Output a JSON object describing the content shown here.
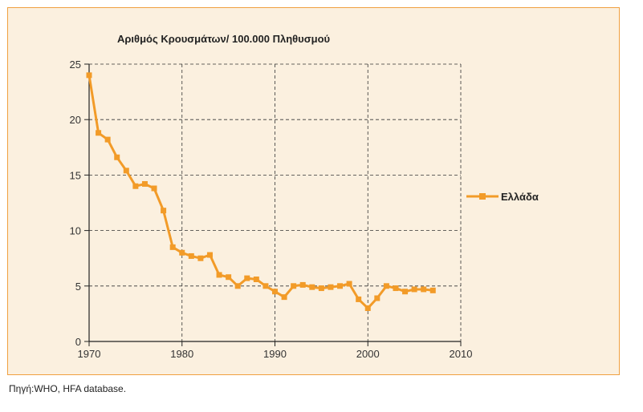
{
  "chart_data": {
    "type": "line",
    "title": "Αριθμός Κρουσμάτων/ 100.000 Πληθυσμού",
    "xlabel": "",
    "ylabel": "",
    "xlim": [
      1970,
      2010
    ],
    "ylim": [
      0,
      25
    ],
    "x_ticks": [
      "1970",
      "1980",
      "1990",
      "2000",
      "2010"
    ],
    "y_ticks": [
      "0",
      "5",
      "10",
      "15",
      "20",
      "25"
    ],
    "grid": true,
    "legend_position": "right",
    "series": [
      {
        "name": "Ελλάδα",
        "color": "#f29b28",
        "marker": "square",
        "x": [
          1970,
          1971,
          1972,
          1973,
          1974,
          1975,
          1976,
          1977,
          1978,
          1979,
          1980,
          1981,
          1982,
          1983,
          1984,
          1985,
          1986,
          1987,
          1988,
          1989,
          1990,
          1991,
          1992,
          1993,
          1994,
          1995,
          1996,
          1997,
          1998,
          1999,
          2000,
          2001,
          2002,
          2003,
          2004,
          2005,
          2006,
          2007
        ],
        "y": [
          24.0,
          18.8,
          18.2,
          16.6,
          15.4,
          14.0,
          14.2,
          13.8,
          11.8,
          8.5,
          8.0,
          7.7,
          7.5,
          7.8,
          6.0,
          5.8,
          5.0,
          5.7,
          5.6,
          5.0,
          4.5,
          4.0,
          5.0,
          5.1,
          4.9,
          4.8,
          4.9,
          5.0,
          5.2,
          3.8,
          3.0,
          3.9,
          5.0,
          4.8,
          4.5,
          4.7,
          4.7,
          4.6
        ]
      }
    ]
  },
  "source_note": "Πηγή:WHO, HFA database.",
  "colors": {
    "panel_background": "#fbf0df",
    "panel_border": "#f0a040",
    "line": "#f29b28"
  }
}
